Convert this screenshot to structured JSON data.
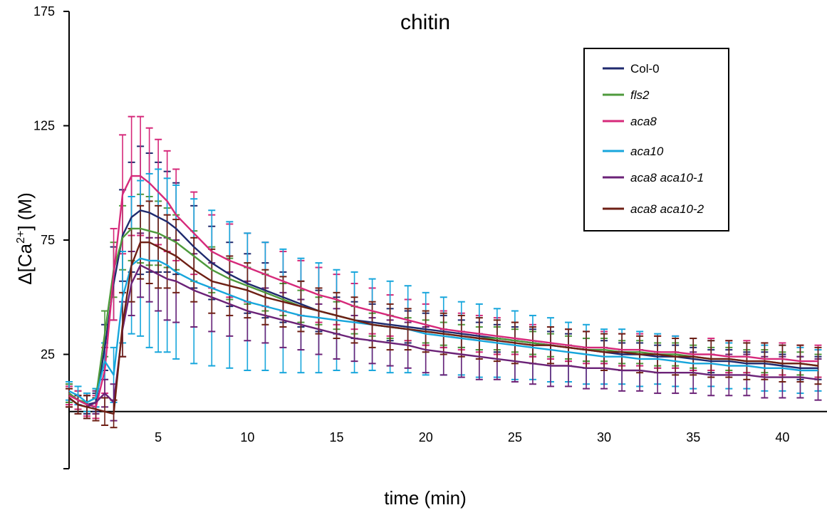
{
  "chart_data": {
    "type": "line",
    "title": "chitin",
    "xlabel": "time (min)",
    "ylabel_parts": [
      "Δ[Ca",
      "2+",
      "] (M)"
    ],
    "xlim": [
      0,
      42.5
    ],
    "ylim": [
      -25,
      175
    ],
    "x_ticks": [
      5,
      10,
      15,
      20,
      25,
      30,
      35,
      40
    ],
    "y_ticks": [
      25,
      75,
      125,
      175
    ],
    "x_tick_labels": [
      "5",
      "10",
      "15",
      "20",
      "25",
      "30",
      "35",
      "40"
    ],
    "y_tick_labels": [
      "25",
      "75",
      "125",
      "175"
    ],
    "legend_position": "top-right",
    "x": [
      0,
      0.5,
      1,
      1.5,
      2,
      2.5,
      3,
      3.5,
      4,
      4.5,
      5,
      5.5,
      6,
      7,
      8,
      9,
      10,
      11,
      12,
      13,
      14,
      15,
      16,
      17,
      18,
      19,
      20,
      21,
      22,
      23,
      24,
      25,
      26,
      27,
      28,
      29,
      30,
      31,
      32,
      33,
      34,
      35,
      36,
      37,
      38,
      39,
      40,
      41,
      42
    ],
    "series": [
      {
        "name": "Col-0",
        "italic": false,
        "color": "#1f2a6e",
        "values": [
          8,
          5,
          3,
          4,
          28,
          56,
          77,
          85,
          88,
          87,
          85,
          83,
          80,
          72,
          65,
          60,
          56,
          53,
          50,
          47,
          44,
          42,
          40,
          39,
          38,
          37,
          36,
          35,
          34,
          33,
          32,
          31,
          30,
          29,
          28,
          27,
          26,
          25,
          25,
          24,
          24,
          23,
          22,
          22,
          21,
          21,
          20,
          19,
          19
        ],
        "error": [
          4,
          4,
          4,
          4,
          10,
          16,
          20,
          24,
          28,
          26,
          24,
          22,
          20,
          18,
          16,
          14,
          13,
          12,
          11,
          10,
          9,
          8,
          8,
          8,
          7,
          7,
          7,
          7,
          6,
          6,
          6,
          6,
          6,
          6,
          6,
          5,
          5,
          5,
          5,
          5,
          5,
          5,
          5,
          5,
          5,
          5,
          5,
          5,
          5
        ]
      },
      {
        "name": "fls2",
        "italic": true,
        "color": "#4e9a3c",
        "values": [
          8,
          5,
          4,
          6,
          34,
          62,
          76,
          80,
          80,
          79,
          78,
          76,
          74,
          68,
          62,
          58,
          55,
          52,
          49,
          46,
          44,
          42,
          40,
          38,
          37,
          36,
          35,
          34,
          33,
          32,
          32,
          31,
          30,
          29,
          28,
          27,
          27,
          26,
          26,
          25,
          25,
          24,
          23,
          23,
          22,
          22,
          21,
          21,
          20
        ],
        "error": [
          4,
          4,
          4,
          4,
          10,
          12,
          14,
          14,
          15,
          15,
          14,
          13,
          12,
          11,
          10,
          9,
          8,
          8,
          7,
          7,
          6,
          6,
          6,
          5,
          5,
          5,
          5,
          5,
          5,
          5,
          5,
          5,
          5,
          5,
          5,
          5,
          5,
          5,
          5,
          5,
          5,
          5,
          5,
          5,
          5,
          5,
          5,
          5,
          5
        ]
      },
      {
        "name": "aca8",
        "italic": true,
        "color": "#d6297a",
        "values": [
          7,
          5,
          3,
          2,
          18,
          60,
          95,
          103,
          103,
          100,
          96,
          92,
          86,
          78,
          70,
          66,
          63,
          60,
          57,
          54,
          51,
          49,
          46,
          44,
          42,
          40,
          38,
          36,
          35,
          34,
          33,
          32,
          31,
          30,
          29,
          28,
          28,
          27,
          27,
          26,
          26,
          25,
          25,
          24,
          24,
          23,
          23,
          22,
          22
        ],
        "error": [
          4,
          4,
          5,
          5,
          10,
          20,
          26,
          26,
          26,
          24,
          23,
          22,
          20,
          18,
          16,
          16,
          15,
          14,
          13,
          12,
          12,
          11,
          10,
          10,
          9,
          9,
          9,
          8,
          8,
          8,
          8,
          7,
          7,
          7,
          7,
          7,
          7,
          7,
          7,
          7,
          7,
          7,
          7,
          7,
          7,
          7,
          7,
          7,
          7
        ]
      },
      {
        "name": "aca10",
        "italic": true,
        "color": "#17a6dc",
        "values": [
          9,
          7,
          4,
          6,
          22,
          16,
          50,
          64,
          67,
          66,
          66,
          64,
          61,
          57,
          54,
          51,
          48,
          46,
          44,
          42,
          41,
          40,
          39,
          38,
          37,
          36,
          34,
          33,
          32,
          31,
          30,
          29,
          28,
          27,
          26,
          25,
          24,
          24,
          23,
          23,
          22,
          21,
          21,
          20,
          20,
          19,
          19,
          18,
          18
        ],
        "error": [
          4,
          4,
          4,
          4,
          8,
          12,
          20,
          30,
          34,
          38,
          40,
          38,
          38,
          36,
          34,
          32,
          30,
          28,
          27,
          25,
          24,
          22,
          22,
          20,
          20,
          19,
          18,
          17,
          16,
          16,
          15,
          15,
          14,
          14,
          13,
          13,
          12,
          12,
          12,
          11,
          11,
          11,
          10,
          10,
          10,
          10,
          10,
          10,
          9
        ]
      },
      {
        "name": "aca8 aca10-1",
        "italic": true,
        "color": "#6b2277",
        "values": [
          6,
          3,
          2,
          4,
          8,
          4,
          36,
          56,
          64,
          62,
          60,
          58,
          57,
          53,
          50,
          47,
          44,
          42,
          40,
          38,
          36,
          34,
          32,
          31,
          30,
          29,
          27,
          26,
          25,
          24,
          23,
          22,
          21,
          20,
          20,
          19,
          19,
          18,
          18,
          17,
          17,
          17,
          16,
          16,
          16,
          15,
          15,
          15,
          14
        ],
        "error": [
          4,
          4,
          5,
          5,
          6,
          8,
          12,
          14,
          14,
          14,
          16,
          18,
          18,
          16,
          15,
          14,
          13,
          12,
          12,
          11,
          11,
          11,
          10,
          10,
          10,
          10,
          10,
          10,
          10,
          10,
          9,
          9,
          9,
          9,
          9,
          9,
          9,
          9,
          9,
          9,
          9,
          9,
          9,
          9,
          9,
          9,
          9,
          9,
          9
        ]
      },
      {
        "name": "aca8 aca10-2",
        "italic": true,
        "color": "#6e1f14",
        "values": [
          6,
          3,
          2,
          1,
          0,
          -1,
          38,
          64,
          74,
          74,
          72,
          70,
          68,
          62,
          57,
          55,
          53,
          50,
          48,
          46,
          44,
          42,
          40,
          38,
          37,
          36,
          35,
          34,
          33,
          32,
          31,
          30,
          29,
          29,
          28,
          27,
          26,
          26,
          25,
          25,
          24,
          24,
          23,
          23,
          22,
          22,
          21,
          21,
          20
        ],
        "error": [
          4,
          4,
          5,
          5,
          6,
          6,
          14,
          16,
          16,
          18,
          18,
          16,
          16,
          14,
          14,
          13,
          12,
          12,
          11,
          11,
          10,
          10,
          10,
          10,
          10,
          9,
          9,
          9,
          9,
          9,
          9,
          9,
          8,
          8,
          8,
          8,
          8,
          8,
          8,
          8,
          8,
          8,
          8,
          8,
          8,
          8,
          8,
          8,
          8
        ]
      }
    ]
  }
}
